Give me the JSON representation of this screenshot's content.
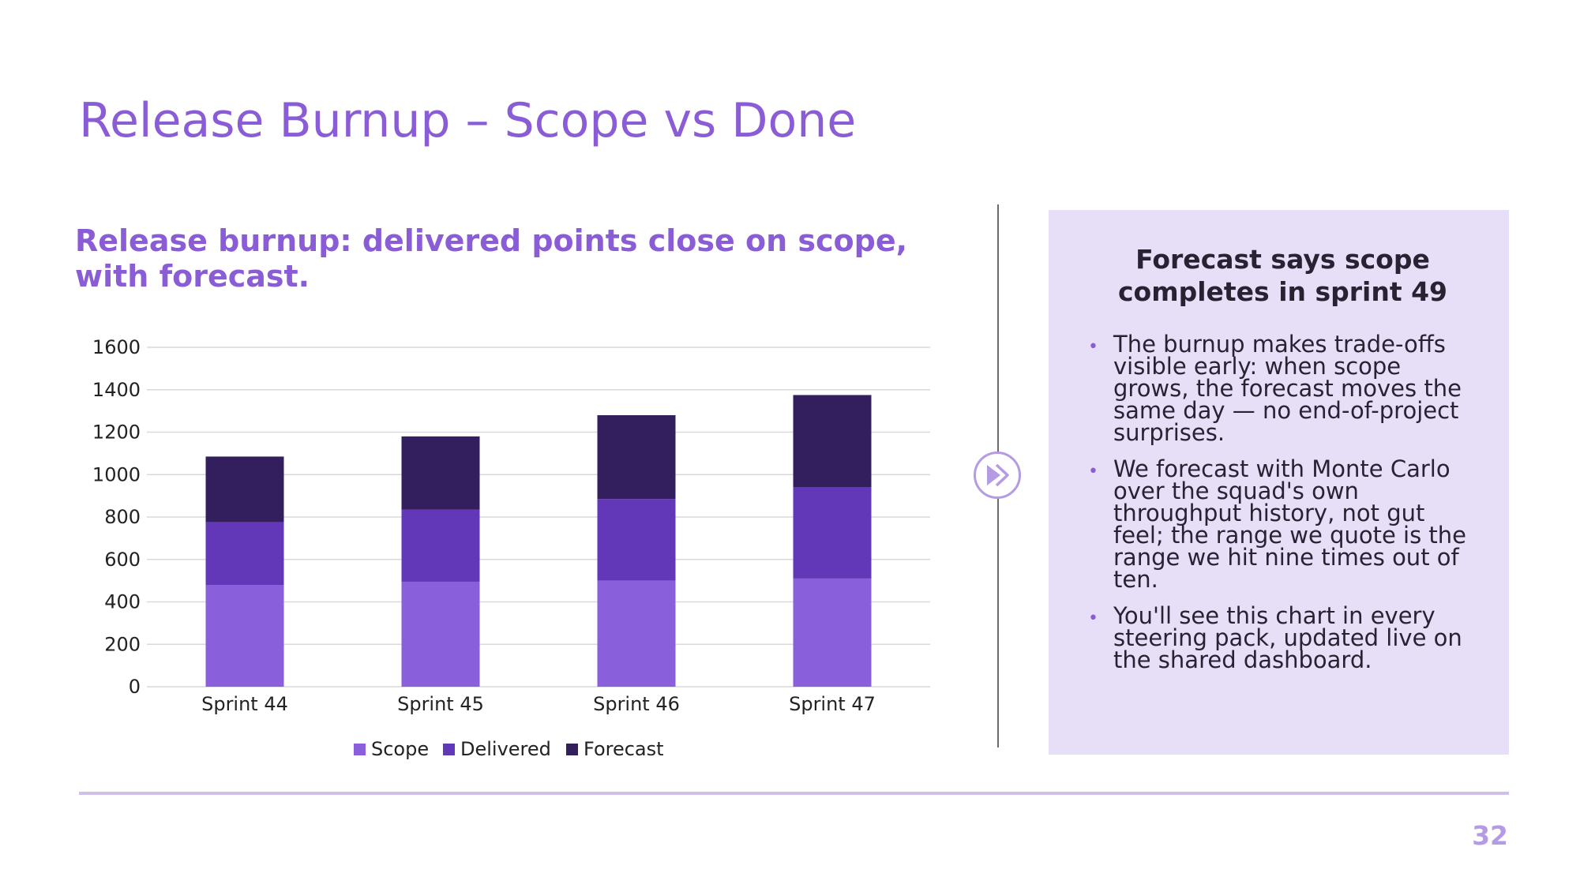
{
  "slide": {
    "title": "Release Burnup – Scope vs Done",
    "page_number": "32"
  },
  "chart_heading": "Release burnup: delivered points close on scope, with forecast.",
  "panel": {
    "title": "Forecast says scope completes in sprint 49",
    "bullets": [
      "The burnup makes trade-offs visible early: when scope grows, the forecast moves the same day — no end-of-project surprises.",
      "We forecast with Monte Carlo over the squad's own throughput history, not gut feel; the range we quote is the range we hit nine times out of ten.",
      "You'll see this chart in every steering pack, updated live on the shared dashboard."
    ]
  },
  "colors": {
    "accent": "#8a5cd6",
    "scope": "#8a5fdb",
    "delivered": "#6238b8",
    "forecast": "#331f5e",
    "panel_bg": "#e7dff7",
    "page_number": "#b49be3"
  },
  "icons": {
    "arrow_badge": "double-chevron-right-icon"
  },
  "chart_data": {
    "type": "bar",
    "stacked": true,
    "categories": [
      "Sprint 44",
      "Sprint 45",
      "Sprint 46",
      "Sprint 47"
    ],
    "series": [
      {
        "name": "Scope",
        "values": [
          480,
          495,
          500,
          510
        ]
      },
      {
        "name": "Delivered",
        "values": [
          295,
          340,
          385,
          430
        ]
      },
      {
        "name": "Forecast",
        "values": [
          310,
          345,
          395,
          435
        ]
      }
    ],
    "ylim": [
      0,
      1600
    ],
    "yticks": [
      0,
      200,
      400,
      600,
      800,
      1000,
      1200,
      1400,
      1600
    ],
    "grid": true,
    "legend": "bottom"
  }
}
